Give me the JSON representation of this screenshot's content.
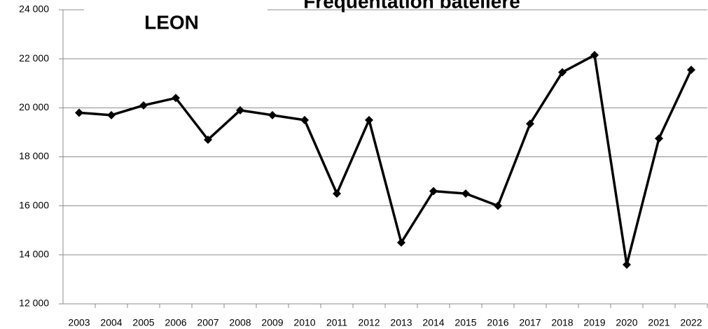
{
  "chart_data": {
    "type": "line",
    "title": "Fréquentation batelière",
    "logo_text": "LEON",
    "categories": [
      "2003",
      "2004",
      "2005",
      "2006",
      "2007",
      "2008",
      "2009",
      "2010",
      "2011",
      "2012",
      "2013",
      "2014",
      "2015",
      "2016",
      "2017",
      "2018",
      "2019",
      "2020",
      "2021",
      "2022"
    ],
    "series": [
      {
        "name": "Fréquentation",
        "color": "#000000",
        "values": [
          19800,
          19700,
          20100,
          20400,
          18700,
          19900,
          19700,
          19500,
          16500,
          19500,
          14500,
          16600,
          16500,
          16000,
          19350,
          21450,
          22150,
          13600,
          18750,
          21550
        ]
      }
    ],
    "ylim": [
      12000,
      24000
    ],
    "yticks": [
      {
        "value": 12000,
        "label": "12 000"
      },
      {
        "value": 14000,
        "label": "14 000"
      },
      {
        "value": 16000,
        "label": "16 000"
      },
      {
        "value": 18000,
        "label": "18 000"
      },
      {
        "value": 20000,
        "label": "20 000"
      },
      {
        "value": 22000,
        "label": "22 000"
      },
      {
        "value": 24000,
        "label": "24 000"
      }
    ],
    "grid": true
  }
}
